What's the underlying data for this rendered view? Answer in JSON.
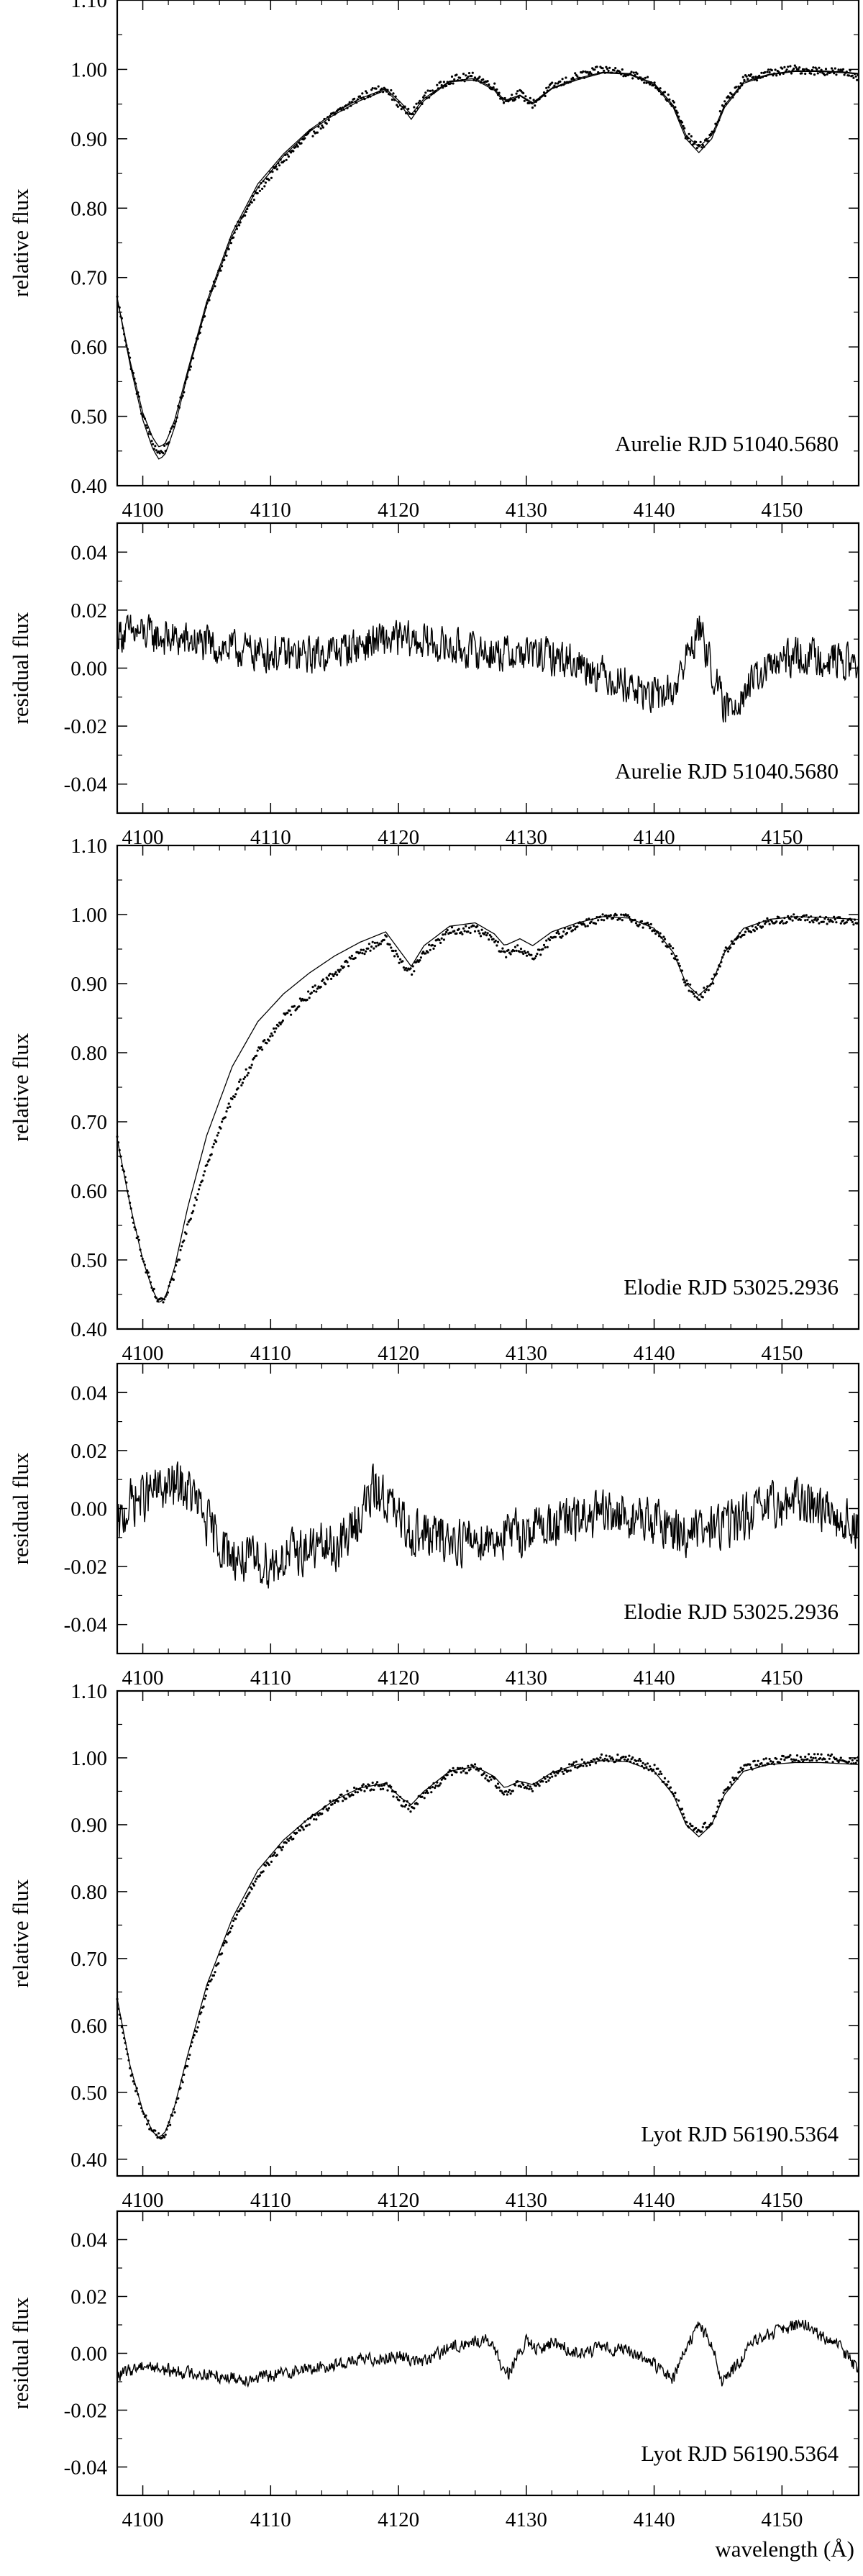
{
  "chart_data": [
    {
      "type": "line",
      "panel": "spectrum",
      "ylabel": "relative flux",
      "xlabel": "",
      "annotation": "Aurelie  RJD 51040.5680",
      "xlim": [
        4098,
        4156
      ],
      "ylim": [
        0.4,
        1.1
      ],
      "xticks": [
        4100,
        4110,
        4120,
        4130,
        4140,
        4150
      ],
      "yticks": [
        "0.40",
        "0.50",
        "0.60",
        "0.70",
        "0.80",
        "0.90",
        "1.00",
        "1.10"
      ],
      "xticklabels_shown": true,
      "series": [
        {
          "style": "dots",
          "x": [
            4098,
            4099,
            4100,
            4100.8,
            4101.3,
            4101.8,
            4102.5,
            4103.5,
            4105,
            4107,
            4109,
            4111,
            4113,
            4115,
            4117,
            4119,
            4120.2,
            4121,
            4122,
            4124,
            4126,
            4127.5,
            4128.3,
            4129.5,
            4130.5,
            4132,
            4134,
            4136,
            4138,
            4140,
            4141.5,
            4142.5,
            4143.5,
            4144.5,
            4145.5,
            4147,
            4149,
            4151,
            4153,
            4155,
            4156
          ],
          "y": [
            0.67,
            0.58,
            0.5,
            0.46,
            0.446,
            0.455,
            0.49,
            0.56,
            0.66,
            0.76,
            0.825,
            0.87,
            0.905,
            0.935,
            0.96,
            0.975,
            0.945,
            0.935,
            0.96,
            0.985,
            0.99,
            0.975,
            0.955,
            0.965,
            0.95,
            0.975,
            0.99,
            1.0,
            0.995,
            0.98,
            0.95,
            0.905,
            0.887,
            0.905,
            0.95,
            0.985,
            0.995,
            1.0,
            0.998,
            0.995,
            0.99
          ]
        },
        {
          "style": "line",
          "x": [
            4098,
            4099,
            4100,
            4100.8,
            4101.3,
            4101.8,
            4102.5,
            4103.5,
            4105,
            4107,
            4109,
            4111,
            4113,
            4115,
            4117,
            4119,
            4120.2,
            4121,
            4122,
            4124,
            4126,
            4127.5,
            4128.3,
            4129.5,
            4130.5,
            4132,
            4134,
            4136,
            4138,
            4140,
            4141.5,
            4142.5,
            4143.5,
            4144.5,
            4145.5,
            4147,
            4149,
            4151,
            4153,
            4155,
            4156
          ],
          "y": [
            0.67,
            0.575,
            0.495,
            0.452,
            0.437,
            0.447,
            0.485,
            0.56,
            0.66,
            0.76,
            0.83,
            0.875,
            0.91,
            0.935,
            0.955,
            0.97,
            0.948,
            0.928,
            0.955,
            0.982,
            0.985,
            0.97,
            0.952,
            0.962,
            0.95,
            0.972,
            0.985,
            0.995,
            0.993,
            0.978,
            0.945,
            0.9,
            0.88,
            0.9,
            0.945,
            0.98,
            0.992,
            0.997,
            0.997,
            0.995,
            0.993
          ]
        },
        {
          "style": "line",
          "x": [
            4098,
            4099,
            4100,
            4100.8,
            4101.3,
            4101.8,
            4102.5,
            4103.5,
            4105,
            4107,
            4109,
            4111,
            4113,
            4115,
            4117,
            4119,
            4120.2,
            4121,
            4122,
            4124,
            4126,
            4127.5,
            4128.3,
            4129.5,
            4130.5,
            4132,
            4134,
            4136,
            4138,
            4140,
            4141.5,
            4142.5,
            4143.5,
            4144.5,
            4145.5,
            4147,
            4149,
            4151,
            4153,
            4155,
            4156
          ],
          "y": [
            0.67,
            0.58,
            0.505,
            0.468,
            0.455,
            0.462,
            0.495,
            0.565,
            0.665,
            0.765,
            0.835,
            0.878,
            0.912,
            0.938,
            0.958,
            0.972,
            0.952,
            0.935,
            0.958,
            0.983,
            0.987,
            0.972,
            0.955,
            0.963,
            0.952,
            0.973,
            0.987,
            0.996,
            0.994,
            0.98,
            0.948,
            0.905,
            0.888,
            0.905,
            0.948,
            0.982,
            0.993,
            0.998,
            0.998,
            0.996,
            0.994
          ]
        }
      ]
    },
    {
      "type": "line",
      "panel": "residual",
      "ylabel": "residual flux",
      "xlabel": "",
      "annotation": "Aurelie  RJD 51040.5680",
      "xlim": [
        4098,
        4156
      ],
      "ylim": [
        -0.05,
        0.05
      ],
      "xticks": [
        4100,
        4110,
        4120,
        4130,
        4140,
        4150
      ],
      "yticks": [
        "-0.04",
        "-0.02",
        "0.00",
        "0.02",
        "0.04"
      ],
      "xticklabels_shown": true,
      "noise_amplitude": 0.005,
      "series": [
        {
          "style": "line",
          "x": [
            4098,
            4100,
            4102,
            4104,
            4106,
            4108,
            4110,
            4112,
            4114,
            4116,
            4118,
            4120,
            4122,
            4124,
            4126,
            4128,
            4130,
            4132,
            4134,
            4136,
            4138,
            4140,
            4141.5,
            4142.5,
            4143.5,
            4144.5,
            4145.5,
            4147,
            4149,
            4151,
            4153,
            4156
          ],
          "y": [
            0.012,
            0.012,
            0.01,
            0.009,
            0.007,
            0.006,
            0.005,
            0.004,
            0.005,
            0.007,
            0.009,
            0.01,
            0.009,
            0.007,
            0.006,
            0.005,
            0.005,
            0.004,
            0.002,
            -0.002,
            -0.006,
            -0.01,
            -0.008,
            0.003,
            0.014,
            0.0,
            -0.015,
            -0.008,
            0.0,
            0.004,
            0.004,
            0.001
          ]
        }
      ]
    },
    {
      "type": "line",
      "panel": "spectrum",
      "ylabel": "relative flux",
      "xlabel": "",
      "annotation": "Elodie  RJD 53025.2936",
      "xlim": [
        4098,
        4156
      ],
      "ylim": [
        0.4,
        1.1
      ],
      "xticks": [
        4100,
        4110,
        4120,
        4130,
        4140,
        4150
      ],
      "yticks": [
        "0.40",
        "0.50",
        "0.60",
        "0.70",
        "0.80",
        "0.90",
        "1.00",
        "1.10"
      ],
      "xticklabels_shown": true,
      "series": [
        {
          "style": "dots",
          "x": [
            4098,
            4099,
            4100,
            4100.8,
            4101.3,
            4101.8,
            4102.5,
            4103.5,
            4105,
            4107,
            4109,
            4111,
            4113,
            4115,
            4117,
            4119,
            4120.2,
            4121,
            4122,
            4124,
            4126,
            4127.5,
            4128.3,
            4129.5,
            4130.5,
            4132,
            4134,
            4136,
            4138,
            4140,
            4141.5,
            4142.5,
            4143.5,
            4144.5,
            4145.5,
            4147,
            4149,
            4151,
            4153,
            4155,
            4156
          ],
          "y": [
            0.675,
            0.58,
            0.5,
            0.455,
            0.437,
            0.445,
            0.48,
            0.55,
            0.64,
            0.735,
            0.8,
            0.85,
            0.885,
            0.915,
            0.945,
            0.965,
            0.93,
            0.918,
            0.945,
            0.975,
            0.98,
            0.962,
            0.942,
            0.952,
            0.935,
            0.965,
            0.985,
            0.995,
            0.995,
            0.98,
            0.945,
            0.9,
            0.88,
            0.9,
            0.945,
            0.975,
            0.99,
            0.995,
            0.992,
            0.99,
            0.99
          ]
        },
        {
          "style": "line",
          "x": [
            4098,
            4099,
            4100,
            4100.8,
            4101.3,
            4101.8,
            4102.5,
            4103.5,
            4105,
            4107,
            4109,
            4111,
            4113,
            4115,
            4117,
            4119,
            4120.2,
            4121,
            4122,
            4124,
            4126,
            4127.5,
            4128.3,
            4129.5,
            4130.5,
            4132,
            4134,
            4136,
            4138,
            4140,
            4141.5,
            4142.5,
            4143.5,
            4144.5,
            4145.5,
            4147,
            4149,
            4151,
            4153,
            4155,
            4156
          ],
          "y": [
            0.675,
            0.58,
            0.5,
            0.455,
            0.437,
            0.447,
            0.49,
            0.575,
            0.68,
            0.78,
            0.845,
            0.885,
            0.915,
            0.94,
            0.96,
            0.975,
            0.945,
            0.925,
            0.955,
            0.983,
            0.988,
            0.972,
            0.955,
            0.965,
            0.955,
            0.975,
            0.988,
            0.997,
            0.995,
            0.98,
            0.945,
            0.9,
            0.883,
            0.9,
            0.945,
            0.98,
            0.993,
            0.997,
            0.996,
            0.994,
            0.993
          ]
        }
      ]
    },
    {
      "type": "line",
      "panel": "residual",
      "ylabel": "residual flux",
      "xlabel": "",
      "annotation": "Elodie  RJD 53025.2936",
      "xlim": [
        4098,
        4156
      ],
      "ylim": [
        -0.05,
        0.05
      ],
      "xticks": [
        4100,
        4110,
        4120,
        4130,
        4140,
        4150
      ],
      "yticks": [
        "-0.04",
        "-0.02",
        "0.00",
        "0.02",
        "0.04"
      ],
      "xticklabels_shown": true,
      "noise_amplitude": 0.0065,
      "series": [
        {
          "style": "line",
          "x": [
            4098,
            4099,
            4101,
            4103,
            4104,
            4105,
            4106,
            4107,
            4108,
            4110,
            4112,
            4114,
            4115,
            4116,
            4117,
            4118,
            4119,
            4120,
            4121,
            4123,
            4125,
            4127,
            4129,
            4131,
            4133,
            4135,
            4137,
            4139,
            4141,
            4143,
            4145,
            4147,
            4149,
            4151,
            4153,
            4155,
            4156
          ],
          "y": [
            -0.008,
            0.002,
            0.006,
            0.008,
            0.004,
            -0.005,
            -0.012,
            -0.016,
            -0.018,
            -0.019,
            -0.015,
            -0.013,
            -0.014,
            -0.01,
            -0.002,
            0.006,
            0.004,
            -0.004,
            -0.008,
            -0.01,
            -0.011,
            -0.01,
            -0.009,
            -0.006,
            -0.005,
            -0.003,
            -0.002,
            -0.004,
            -0.006,
            -0.009,
            -0.006,
            -0.003,
            0.0,
            0.003,
            0.001,
            -0.004,
            -0.008
          ]
        }
      ]
    },
    {
      "type": "line",
      "panel": "spectrum",
      "ylabel": "relative flux",
      "xlabel": "",
      "annotation": "Lyot  RJD 56190.5364",
      "xlim": [
        4098,
        4156
      ],
      "ylim": [
        0.375,
        1.1
      ],
      "xticks": [
        4100,
        4110,
        4120,
        4130,
        4140,
        4150
      ],
      "yticks": [
        "0.40",
        "0.50",
        "0.60",
        "0.70",
        "0.80",
        "0.90",
        "1.00",
        "1.10"
      ],
      "xticklabels_shown": true,
      "series": [
        {
          "style": "dots",
          "x": [
            4098,
            4099,
            4100,
            4100.8,
            4101.3,
            4101.8,
            4102.5,
            4103.5,
            4105,
            4107,
            4109,
            4111,
            4113,
            4115,
            4117,
            4119,
            4120.2,
            4121,
            4122,
            4124,
            4126,
            4127.5,
            4128.3,
            4129.5,
            4130.5,
            4132,
            4134,
            4136,
            4138,
            4140,
            4141.5,
            4142.5,
            4143.5,
            4144.5,
            4145.5,
            4147,
            4149,
            4151,
            4153,
            4155,
            4156
          ],
          "y": [
            0.635,
            0.535,
            0.47,
            0.44,
            0.432,
            0.44,
            0.475,
            0.545,
            0.65,
            0.75,
            0.825,
            0.87,
            0.905,
            0.935,
            0.955,
            0.96,
            0.935,
            0.925,
            0.945,
            0.978,
            0.985,
            0.965,
            0.945,
            0.963,
            0.955,
            0.975,
            0.99,
            1.0,
            0.998,
            0.985,
            0.95,
            0.905,
            0.89,
            0.905,
            0.95,
            0.985,
            0.995,
            1.0,
            1.0,
            0.998,
            0.995
          ]
        },
        {
          "style": "line",
          "x": [
            4098,
            4099,
            4100,
            4100.8,
            4101.3,
            4101.8,
            4102.5,
            4103.5,
            4105,
            4107,
            4109,
            4111,
            4113,
            4115,
            4117,
            4119,
            4120.2,
            4121,
            4122,
            4124,
            4126,
            4127.5,
            4128.3,
            4129.5,
            4130.5,
            4132,
            4134,
            4136,
            4138,
            4140,
            4141.5,
            4142.5,
            4143.5,
            4144.5,
            4145.5,
            4147,
            4149,
            4151,
            4153,
            4155,
            4156
          ],
          "y": [
            0.64,
            0.54,
            0.472,
            0.44,
            0.432,
            0.442,
            0.48,
            0.555,
            0.66,
            0.76,
            0.832,
            0.877,
            0.91,
            0.937,
            0.955,
            0.962,
            0.94,
            0.93,
            0.95,
            0.98,
            0.987,
            0.972,
            0.955,
            0.965,
            0.96,
            0.978,
            0.99,
            0.996,
            0.994,
            0.98,
            0.945,
            0.9,
            0.882,
            0.9,
            0.945,
            0.98,
            0.99,
            0.993,
            0.993,
            0.991,
            0.99
          ]
        }
      ]
    },
    {
      "type": "line",
      "panel": "residual",
      "ylabel": "residual flux",
      "xlabel": "wavelength (Å)",
      "annotation": "Lyot  RJD 56190.5364",
      "xlim": [
        4098,
        4156
      ],
      "ylim": [
        -0.05,
        0.05
      ],
      "xticks": [
        4100,
        4110,
        4120,
        4130,
        4140,
        4150
      ],
      "yticks": [
        "-0.04",
        "-0.02",
        "0.00",
        "0.02",
        "0.04"
      ],
      "xticklabels_shown": true,
      "noise_amplitude": 0.0018,
      "series": [
        {
          "style": "line",
          "x": [
            4098,
            4100,
            4102,
            4104,
            4106,
            4108,
            4110,
            4112,
            4114,
            4116,
            4118,
            4120,
            4122,
            4124,
            4126,
            4127,
            4127.8,
            4128.6,
            4130,
            4131,
            4132,
            4134,
            4136,
            4138,
            4140,
            4141.5,
            4142.5,
            4143.5,
            4144.5,
            4145.3,
            4146.5,
            4148,
            4150,
            4151.5,
            4153,
            4154.5,
            4156
          ],
          "y": [
            -0.008,
            -0.004,
            -0.006,
            -0.007,
            -0.008,
            -0.009,
            -0.008,
            -0.006,
            -0.005,
            -0.003,
            -0.002,
            -0.001,
            -0.003,
            0.002,
            0.004,
            0.005,
            -0.002,
            -0.007,
            0.004,
            0.001,
            0.004,
            0.0,
            0.002,
            0.001,
            -0.004,
            -0.009,
            0.002,
            0.01,
            0.003,
            -0.01,
            -0.004,
            0.005,
            0.008,
            0.011,
            0.006,
            0.002,
            -0.006
          ]
        }
      ]
    }
  ]
}
